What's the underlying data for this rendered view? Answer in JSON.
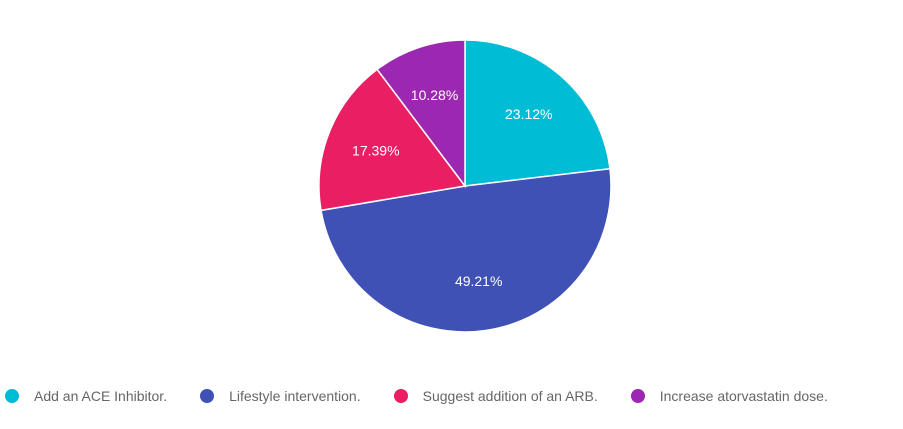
{
  "chart_data": {
    "type": "pie",
    "categories": [
      "Add an ACE Inhibitor.",
      "Lifestyle intervention.",
      "Suggest addition of an ARB.",
      "Increase atorvastatin dose."
    ],
    "values": [
      23.12,
      49.21,
      17.39,
      10.28
    ],
    "data_labels": [
      "23.12%",
      "49.21%",
      "17.39%",
      "10.28%"
    ],
    "colors": [
      "#00bcd4",
      "#3f51b5",
      "#e91e63",
      "#9c27b0"
    ],
    "legend_position": "bottom",
    "start_angle": "top (12 o'clock)",
    "direction": "clockwise",
    "title": "",
    "xlabel": "",
    "ylabel": ""
  },
  "legend": {
    "items": [
      {
        "label": "Add an ACE Inhibitor.",
        "color": "#00bcd4"
      },
      {
        "label": "Lifestyle intervention.",
        "color": "#3f51b5"
      },
      {
        "label": "Suggest addition of an ARB.",
        "color": "#e91e63"
      },
      {
        "label": "Increase atorvastatin dose.",
        "color": "#9c27b0"
      }
    ]
  }
}
